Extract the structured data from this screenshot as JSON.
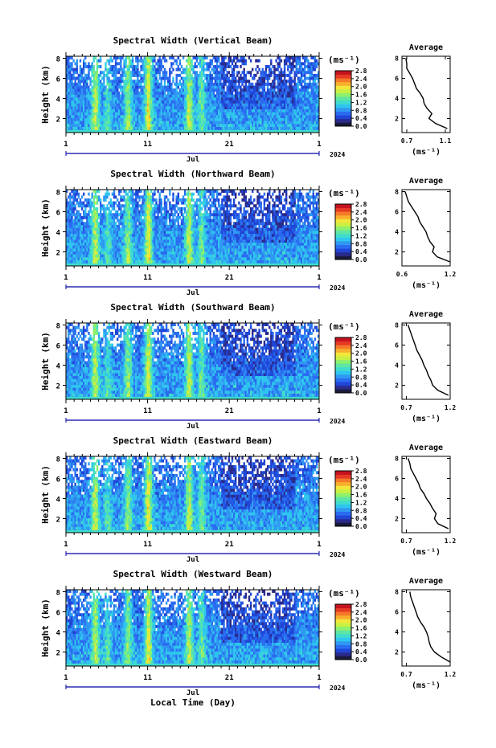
{
  "figure": {
    "xlabel": "Local Time (Day)",
    "month_label": "Jul",
    "year_label": "2024",
    "ylabel": "Height (km)",
    "unit_label": "(ms⁻¹)",
    "avg_title": "Average",
    "avg_xlabel": "(ms⁻¹)"
  },
  "colormap": [
    "#1a1a3a",
    "#2a2a8a",
    "#1f46d6",
    "#2a6cf0",
    "#2f98f2",
    "#2fc6ee",
    "#3fdccc",
    "#5fe6a4",
    "#8ef06c",
    "#c8f044",
    "#f2e63a",
    "#f8b02e",
    "#f47a2a",
    "#e63a26",
    "#c4141e"
  ],
  "chart_data": [
    {
      "type": "heatmap",
      "title": "Spectral Width (Vertical Beam)",
      "x_ticks": [
        "1",
        "11",
        "21",
        "1"
      ],
      "y_ticks": [
        "2",
        "4",
        "6",
        "8"
      ],
      "ylim": [
        0.6,
        8.2
      ],
      "colorbar_ticks": [
        "0.0",
        "0.4",
        "0.8",
        "1.2",
        "1.6",
        "2.0",
        "2.4",
        "2.8"
      ],
      "average": {
        "heights": [
          1.0,
          1.5,
          2.0,
          2.5,
          3.0,
          3.5,
          4.0,
          4.5,
          5.0,
          5.5,
          6.0,
          6.5,
          7.0,
          7.5,
          8.0
        ],
        "values": [
          1.12,
          1.0,
          0.93,
          0.96,
          0.91,
          0.88,
          0.87,
          0.84,
          0.8,
          0.78,
          0.76,
          0.73,
          0.7,
          0.7,
          0.69
        ],
        "x_ticks": [
          "0.7",
          "1.1"
        ],
        "xlim": [
          0.65,
          1.15
        ]
      }
    },
    {
      "type": "heatmap",
      "title": "Spectral Width (Northward Beam)",
      "x_ticks": [
        "1",
        "11",
        "21",
        "1"
      ],
      "y_ticks": [
        "2",
        "4",
        "6",
        "8"
      ],
      "ylim": [
        0.6,
        8.2
      ],
      "colorbar_ticks": [
        "0.0",
        "0.4",
        "0.8",
        "1.2",
        "1.6",
        "2.0",
        "2.4",
        "2.8"
      ],
      "average": {
        "heights": [
          1.0,
          1.5,
          2.0,
          2.5,
          3.0,
          3.5,
          4.0,
          4.5,
          5.0,
          5.5,
          6.0,
          6.5,
          7.0,
          7.5,
          8.0
        ],
        "values": [
          1.2,
          1.04,
          0.98,
          1.0,
          0.95,
          0.92,
          0.9,
          0.86,
          0.82,
          0.8,
          0.76,
          0.72,
          0.68,
          0.66,
          0.64
        ],
        "x_ticks": [
          "0.6",
          "1.2"
        ],
        "xlim": [
          0.6,
          1.2
        ]
      }
    },
    {
      "type": "heatmap",
      "title": "Spectral Width (Southward Beam)",
      "x_ticks": [
        "1",
        "11",
        "21",
        "1"
      ],
      "y_ticks": [
        "2",
        "4",
        "6",
        "8"
      ],
      "ylim": [
        0.6,
        8.2
      ],
      "colorbar_ticks": [
        "0.0",
        "0.4",
        "0.8",
        "1.2",
        "1.6",
        "2.0",
        "2.4",
        "2.8"
      ],
      "average": {
        "heights": [
          1.0,
          1.5,
          2.0,
          2.5,
          3.0,
          3.5,
          4.0,
          4.5,
          5.0,
          5.5,
          6.0,
          6.5,
          7.0,
          7.5,
          8.0
        ],
        "values": [
          1.18,
          1.06,
          1.0,
          0.98,
          0.95,
          0.93,
          0.9,
          0.88,
          0.85,
          0.82,
          0.8,
          0.78,
          0.76,
          0.74,
          0.72
        ],
        "x_ticks": [
          "0.7",
          "1.2"
        ],
        "xlim": [
          0.65,
          1.2
        ]
      }
    },
    {
      "type": "heatmap",
      "title": "Spectral Width (Eastward Beam)",
      "x_ticks": [
        "1",
        "11",
        "21",
        "1"
      ],
      "y_ticks": [
        "2",
        "4",
        "6",
        "8"
      ],
      "ylim": [
        0.6,
        8.2
      ],
      "colorbar_ticks": [
        "0.0",
        "0.4",
        "0.8",
        "1.2",
        "1.6",
        "2.0",
        "2.4",
        "2.8"
      ],
      "average": {
        "heights": [
          1.0,
          1.5,
          2.0,
          2.5,
          3.0,
          3.5,
          4.0,
          4.5,
          5.0,
          5.5,
          6.0,
          6.5,
          7.0,
          7.5,
          8.0
        ],
        "values": [
          1.18,
          1.06,
          1.02,
          1.04,
          1.0,
          0.97,
          0.93,
          0.9,
          0.86,
          0.84,
          0.81,
          0.78,
          0.75,
          0.74,
          0.72
        ],
        "x_ticks": [
          "0.7",
          "1.2"
        ],
        "xlim": [
          0.65,
          1.2
        ]
      }
    },
    {
      "type": "heatmap",
      "title": "Spectral Width (Westward Beam)",
      "x_ticks": [
        "1",
        "11",
        "21",
        "1"
      ],
      "y_ticks": [
        "2",
        "4",
        "6",
        "8"
      ],
      "ylim": [
        0.6,
        8.2
      ],
      "colorbar_ticks": [
        "0.0",
        "0.4",
        "0.8",
        "1.2",
        "1.6",
        "2.0",
        "2.4",
        "2.8"
      ],
      "average": {
        "heights": [
          1.0,
          1.5,
          2.0,
          2.5,
          3.0,
          3.5,
          4.0,
          4.5,
          5.0,
          5.5,
          6.0,
          6.5,
          7.0,
          7.5,
          8.0
        ],
        "values": [
          1.2,
          1.1,
          1.02,
          0.98,
          0.96,
          0.95,
          0.93,
          0.9,
          0.86,
          0.83,
          0.81,
          0.79,
          0.77,
          0.75,
          0.74
        ],
        "x_ticks": [
          "0.7",
          "1.2"
        ],
        "xlim": [
          0.65,
          1.2
        ]
      }
    }
  ]
}
